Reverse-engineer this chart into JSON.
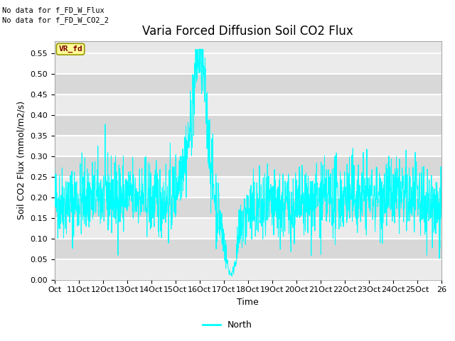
{
  "title": "Varia Forced Diffusion Soil CO2 Flux",
  "xlabel": "Time",
  "ylabel": "Soil CO2 Flux (mmol/m2/s)",
  "line_color": "#00FFFF",
  "fig_facecolor": "#FFFFFF",
  "plot_bg_color": "#E8E8E8",
  "ylim": [
    0.0,
    0.58
  ],
  "yticks": [
    0.0,
    0.05,
    0.1,
    0.15,
    0.2,
    0.25,
    0.3,
    0.35,
    0.4,
    0.45,
    0.5,
    0.55
  ],
  "xtick_labels": [
    "Oct",
    "11Oct",
    "12Oct",
    "13Oct",
    "14Oct",
    "15Oct",
    "16Oct",
    "17Oct",
    "18Oct",
    "19Oct",
    "20Oct",
    "21Oct",
    "22Oct",
    "23Oct",
    "24Oct",
    "25Oct",
    "26"
  ],
  "no_data_text1": "No data for f_FD_W_Flux",
  "no_data_text2": "No data for f_FD_W_CO2_2",
  "legend_label": "North",
  "vr_fd_box_color": "#FFFF99",
  "vr_fd_text_color": "#800000",
  "vr_fd_label": "VR_fd",
  "num_points": 1600,
  "title_fontsize": 12,
  "axis_fontsize": 9,
  "tick_fontsize": 8
}
